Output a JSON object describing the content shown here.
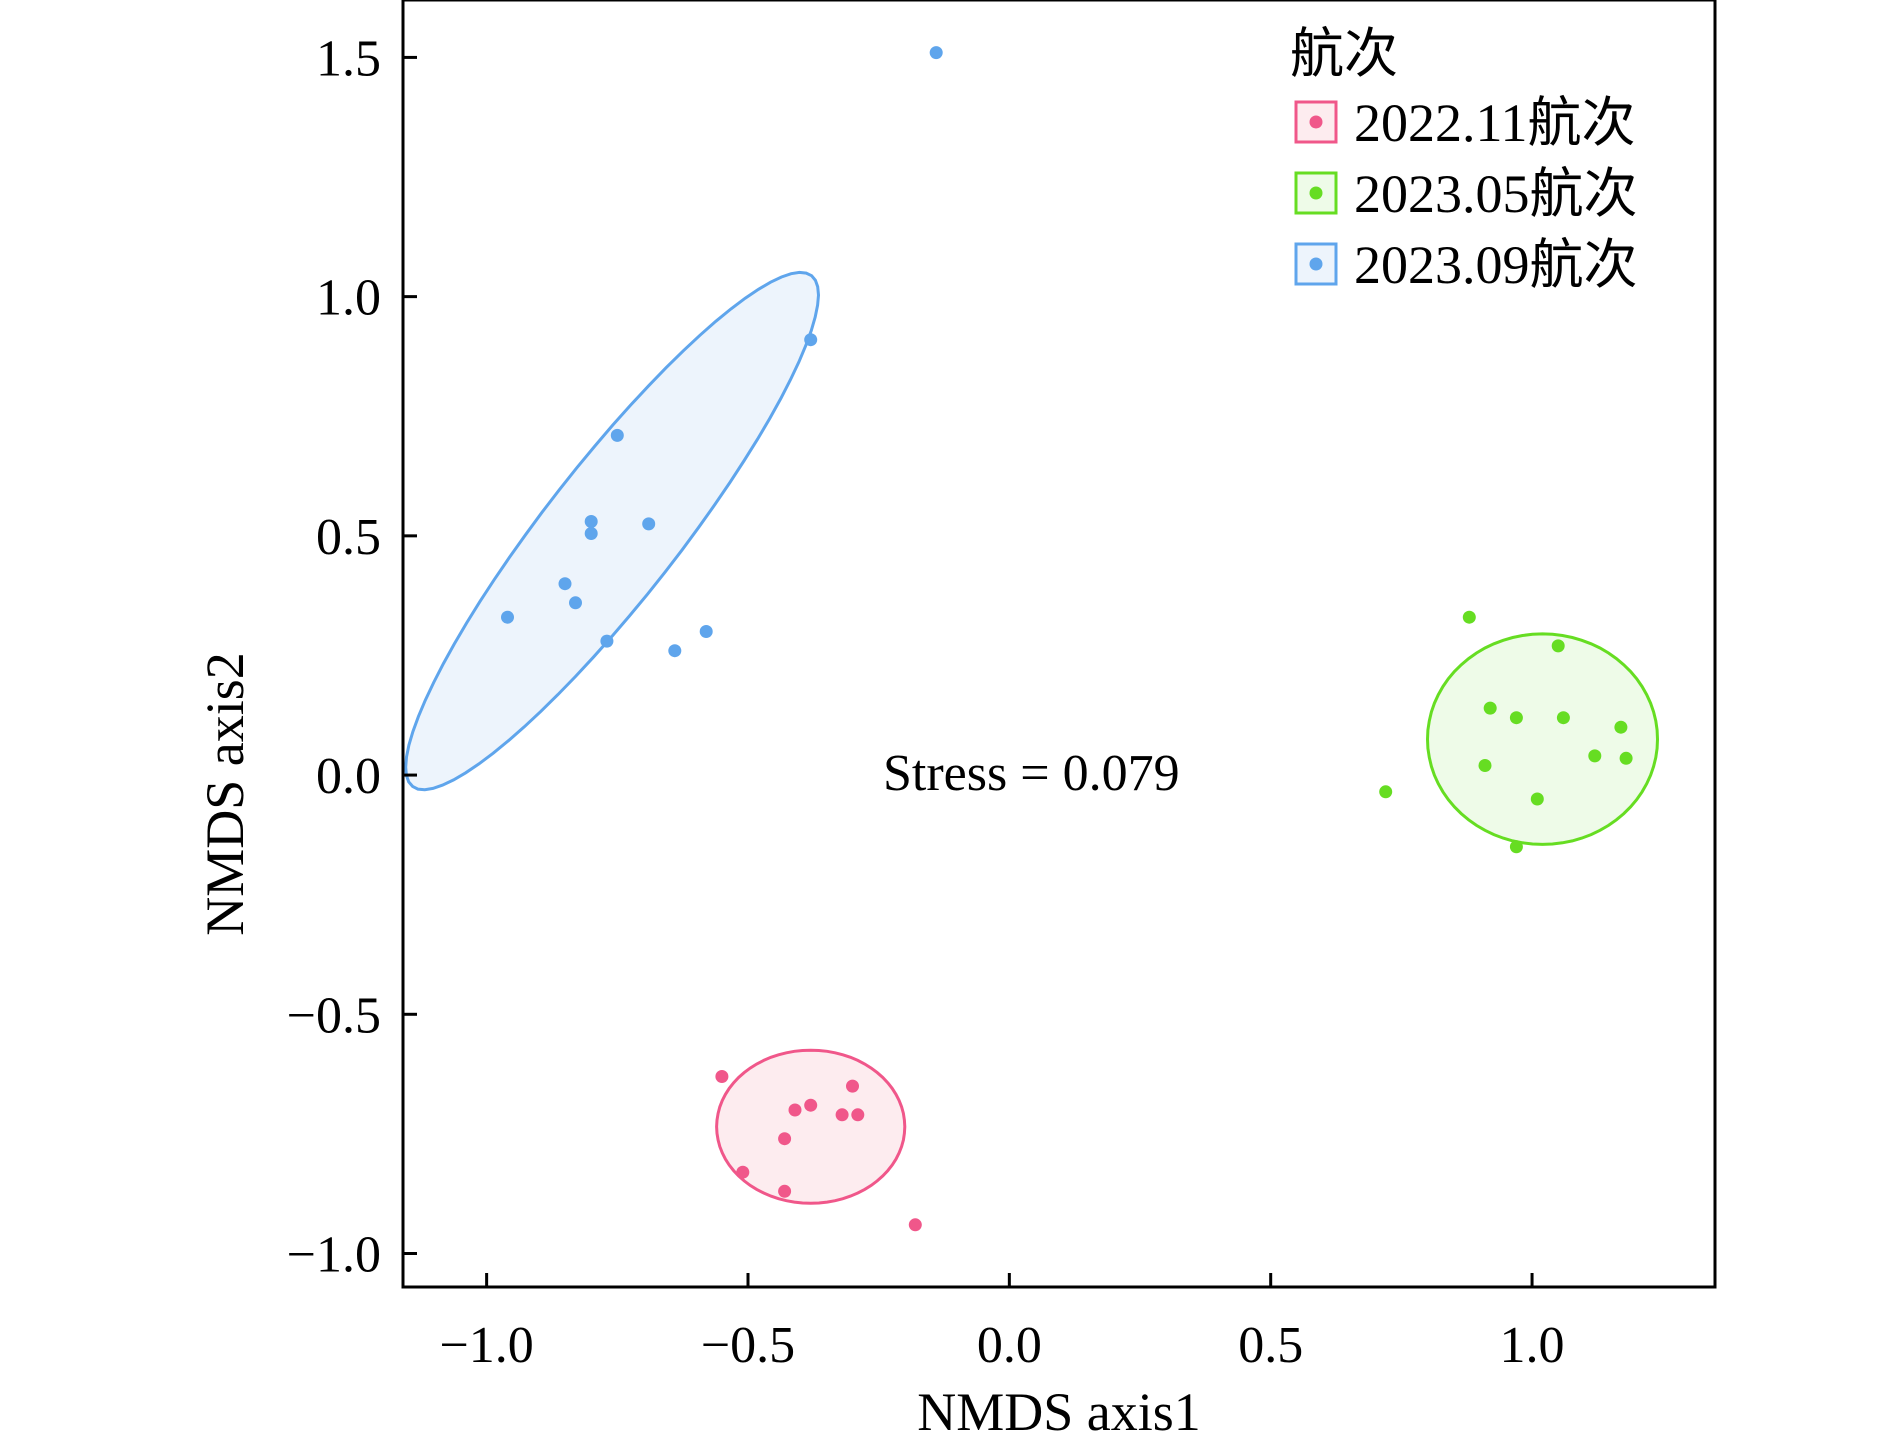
{
  "chart_data": {
    "type": "scatter",
    "xlabel": "NMDS axis1",
    "ylabel": "NMDS axis2",
    "xlim": [
      -1.16,
      1.35
    ],
    "ylim": [
      -1.07,
      1.62
    ],
    "x_ticks": [
      -1.0,
      -0.5,
      0.0,
      0.5,
      1.0
    ],
    "x_tick_labels": [
      "−1.0",
      "−0.5",
      "0.0",
      "0.5",
      "1.0"
    ],
    "y_ticks": [
      -1.0,
      -0.5,
      0.0,
      0.5,
      1.0,
      1.5
    ],
    "y_tick_labels": [
      "−1.0",
      "−0.5",
      "0.0",
      "0.5",
      "1.0",
      "1.5"
    ],
    "grid": false,
    "legend": {
      "title": "航次",
      "placement": "top-right"
    },
    "annotation": "Stress = 0.079",
    "series": [
      {
        "name": "2022.11航次",
        "color": "#f0578a",
        "fill": "#fdecef",
        "points": [
          [
            -0.55,
            -0.63
          ],
          [
            -0.41,
            -0.7
          ],
          [
            -0.38,
            -0.69
          ],
          [
            -0.3,
            -0.65
          ],
          [
            -0.32,
            -0.71
          ],
          [
            -0.29,
            -0.71
          ],
          [
            -0.43,
            -0.76
          ],
          [
            -0.51,
            -0.83
          ],
          [
            -0.43,
            -0.87
          ],
          [
            -0.18,
            -0.94
          ]
        ],
        "ellipse": {
          "cx": -0.38,
          "cy": -0.735,
          "rx": 0.18,
          "ry": 0.16,
          "angle": 0
        }
      },
      {
        "name": "2023.05航次",
        "color": "#66dd22",
        "fill": "#eefbe8",
        "points": [
          [
            0.88,
            0.33
          ],
          [
            1.05,
            0.27
          ],
          [
            0.92,
            0.14
          ],
          [
            0.97,
            0.12
          ],
          [
            1.06,
            0.12
          ],
          [
            1.17,
            0.1
          ],
          [
            1.12,
            0.04
          ],
          [
            1.18,
            0.035
          ],
          [
            0.91,
            0.02
          ],
          [
            1.01,
            -0.05
          ],
          [
            0.72,
            -0.035
          ],
          [
            0.97,
            -0.15
          ]
        ],
        "ellipse": {
          "cx": 1.02,
          "cy": 0.075,
          "rx": 0.22,
          "ry": 0.22,
          "angle": 0
        }
      },
      {
        "name": "2023.09航次",
        "color": "#5fa5ec",
        "fill": "#edf4fc",
        "points": [
          [
            -0.14,
            1.51
          ],
          [
            -0.38,
            0.91
          ],
          [
            -0.75,
            0.71
          ],
          [
            -0.8,
            0.53
          ],
          [
            -0.8,
            0.505
          ],
          [
            -0.69,
            0.525
          ],
          [
            -0.85,
            0.4
          ],
          [
            -0.83,
            0.36
          ],
          [
            -0.96,
            0.33
          ],
          [
            -0.77,
            0.28
          ],
          [
            -0.58,
            0.3
          ],
          [
            -0.64,
            0.26
          ]
        ],
        "ellipse": {
          "cx": -0.76,
          "cy": 0.51,
          "rx": 0.62,
          "ry": 0.14,
          "angle": 52
        }
      }
    ]
  }
}
